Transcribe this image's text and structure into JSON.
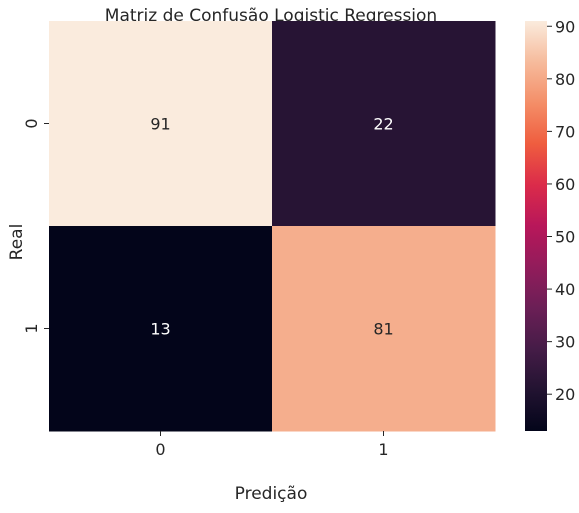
{
  "chart_data": {
    "type": "heatmap",
    "title": "Matriz de Confusão Logistic Regression",
    "xlabel": "Predição",
    "ylabel": "Real",
    "x_categories": [
      "0",
      "1"
    ],
    "y_categories": [
      "0",
      "1"
    ],
    "values": [
      [
        91,
        22
      ],
      [
        13,
        81
      ]
    ],
    "annotations": true,
    "colormap": "rocket",
    "colorbar": {
      "range": [
        13,
        91
      ],
      "ticks": [
        20,
        30,
        40,
        50,
        60,
        70,
        80,
        90
      ]
    },
    "colors": {
      "annotation_light": "#ffffff",
      "annotation_dark": "#262626"
    }
  }
}
